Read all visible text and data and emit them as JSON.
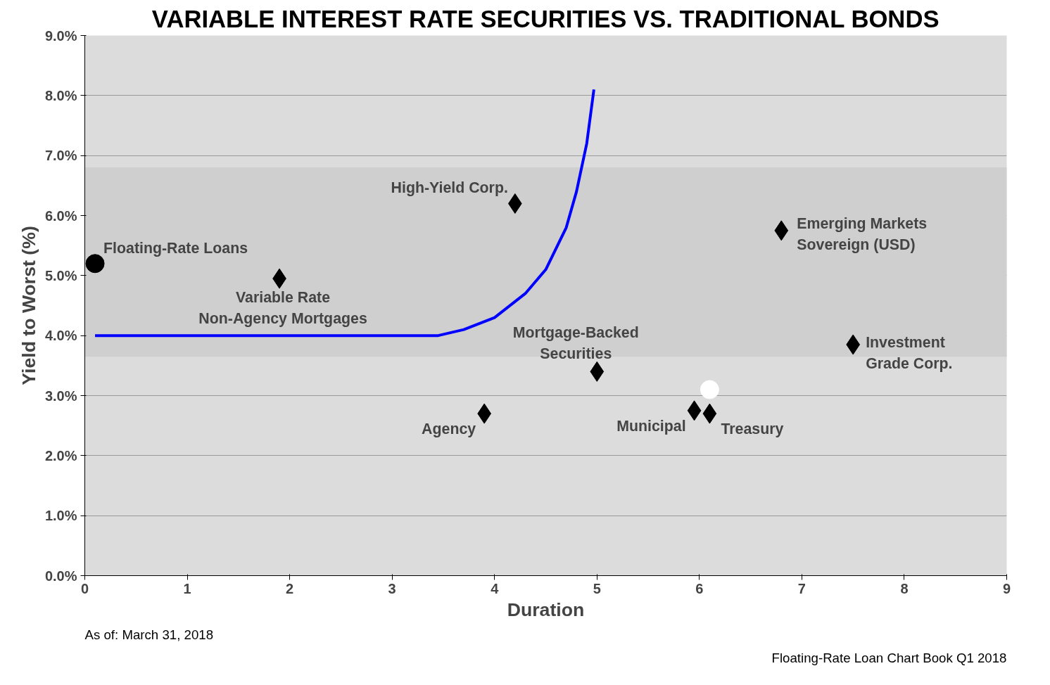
{
  "chart_data": {
    "type": "scatter",
    "title": "VARIABLE INTEREST RATE SECURITIES VS. TRADITIONAL BONDS",
    "xlabel": "Duration",
    "ylabel": "Yield to Worst (%)",
    "xlim": [
      0,
      9
    ],
    "xticks": [
      0,
      1,
      2,
      3,
      4,
      5,
      6,
      7,
      8,
      9
    ],
    "ylim": [
      0,
      9
    ],
    "yticks": [
      {
        "value": 0,
        "label": "0.0%"
      },
      {
        "value": 1,
        "label": "1.0%"
      },
      {
        "value": 2,
        "label": "2.0%"
      },
      {
        "value": 3,
        "label": "3.0%"
      },
      {
        "value": 4,
        "label": "4.0%"
      },
      {
        "value": 5,
        "label": "5.0%"
      },
      {
        "value": 6,
        "label": "6.0%"
      },
      {
        "value": 7,
        "label": "7.0%"
      },
      {
        "value": 8,
        "label": "8.0%"
      },
      {
        "value": 9,
        "label": "9.0%"
      }
    ],
    "grid": "y",
    "bands": [
      {
        "axis": "y",
        "from": 3.65,
        "to": 6.8,
        "color": "#cfcfcf"
      }
    ],
    "series": [
      {
        "type": "line",
        "color": "#0000ff",
        "x": [
          0.1,
          3.45,
          3.7,
          4.0,
          4.3,
          4.5,
          4.7,
          4.8,
          4.9,
          4.97
        ],
        "values": [
          4.0,
          4.0,
          4.1,
          4.3,
          4.7,
          5.1,
          5.8,
          6.4,
          7.2,
          8.1
        ]
      },
      {
        "name": "Floating-Rate Loans",
        "marker": "circle",
        "color": "#000000",
        "x": [
          0.1
        ],
        "values": [
          5.2
        ]
      },
      {
        "name": "Variable Rate\nNon-Agency Mortgages",
        "marker": "diamond",
        "color": "#000000",
        "x": [
          1.9
        ],
        "values": [
          4.95
        ]
      },
      {
        "name": "High-Yield Corp.",
        "marker": "diamond",
        "color": "#000000",
        "x": [
          4.2
        ],
        "values": [
          6.2
        ]
      },
      {
        "name": "Emerging Markets\nSovereign (USD)",
        "marker": "diamond",
        "color": "#000000",
        "x": [
          6.8
        ],
        "values": [
          5.75
        ]
      },
      {
        "name": "Investment\nGrade Corp.",
        "marker": "diamond",
        "color": "#000000",
        "x": [
          7.5
        ],
        "values": [
          3.85
        ]
      },
      {
        "name": "Mortgage-Backed\nSecurities",
        "marker": "diamond",
        "color": "#000000",
        "x": [
          5.0
        ],
        "values": [
          3.4
        ]
      },
      {
        "name": "Agency",
        "marker": "diamond",
        "color": "#000000",
        "x": [
          3.9
        ],
        "values": [
          2.7
        ]
      },
      {
        "name": "Municipal",
        "marker": "diamond",
        "color": "#000000",
        "x": [
          5.95
        ],
        "values": [
          2.75
        ]
      },
      {
        "name": "Treasury",
        "marker": "diamond",
        "color": "#000000",
        "x": [
          6.1
        ],
        "values": [
          2.7
        ]
      },
      {
        "marker": "circle",
        "color": "#ffffff",
        "x": [
          6.1
        ],
        "values": [
          3.1
        ]
      }
    ],
    "annotations": [
      "As of: March 31, 2018",
      "Floating-Rate Loan Chart Book Q1 2018"
    ]
  }
}
